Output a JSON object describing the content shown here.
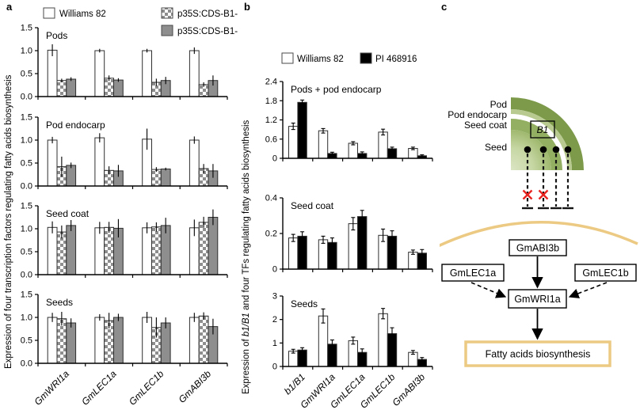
{
  "panels": {
    "a": {
      "label": "a",
      "ylabel": "Expression of four transcription factors regulating fatty acids biosynthesis",
      "legend": [
        {
          "name": "Williams 82",
          "swatch": "white",
          "color": "#ffffff"
        },
        {
          "name": "p35S:CDS-B1-1",
          "swatch": "checker",
          "color": "#8e8e8e"
        },
        {
          "name": "p35S:CDS-B1-2",
          "swatch": "gray",
          "color": "#8e8e8e"
        }
      ]
    },
    "b": {
      "label": "b",
      "ylabel_parts": {
        "pre": "Expression of ",
        "italic": "b1/B1",
        "post": " and four TFs regulating fatty acids biosynthesis"
      },
      "legend": [
        {
          "name": "Williams 82",
          "swatch": "white",
          "color": "#ffffff"
        },
        {
          "name": "PI 468916",
          "swatch": "black",
          "color": "#000000"
        }
      ]
    },
    "c": {
      "label": "c",
      "anatomy_labels": [
        "Pod",
        "Pod endocarp",
        "Seed coat",
        "Seed"
      ],
      "locus_label": "B1",
      "pathway": {
        "top": "GmABI3b",
        "left": "GmLEC1a",
        "right": "GmLEC1b",
        "center": "GmWRI1a",
        "output": "Fatty acids biosynthesis"
      },
      "colors": {
        "pod": "#7d9a4a",
        "pod_endocarp": "#b8ca90",
        "seed_coat": "#93af61",
        "seed_light": "#dbe5c4",
        "seed_mid": "#c7d7a4",
        "seed_dark": "#9fb86e",
        "gold": "#ecca83",
        "red_x": "#e8231f"
      }
    }
  },
  "chart_data": [
    {
      "panel": "a",
      "type": "bar",
      "title": "Pods",
      "categories": [
        "GmWRI1a",
        "GmLEC1a",
        "GmLEC1b",
        "GmABI3b"
      ],
      "ylim": [
        0,
        1.5
      ],
      "yticks": [
        "0.0",
        "0.5",
        "1.0",
        "1.5"
      ],
      "ylabel": "Expression of four transcription factors regulating fatty acids biosynthesis",
      "series": [
        {
          "name": "Williams 82",
          "values": [
            1.01,
            1.0,
            1.0,
            1.0
          ],
          "errors": [
            0.13,
            0.04,
            0.04,
            0.07
          ]
        },
        {
          "name": "p35S:CDS-B1-1",
          "values": [
            0.35,
            0.4,
            0.31,
            0.26
          ],
          "errors": [
            0.04,
            0.06,
            0.08,
            0.05
          ]
        },
        {
          "name": "p35S:CDS-B1-2",
          "values": [
            0.38,
            0.36,
            0.35,
            0.35
          ],
          "errors": [
            0.04,
            0.04,
            0.08,
            0.11
          ]
        }
      ]
    },
    {
      "panel": "a",
      "type": "bar",
      "title": "Pod endocarp",
      "categories": [
        "GmWRI1a",
        "GmLEC1a",
        "GmLEC1b",
        "GmABI3b"
      ],
      "ylim": [
        0,
        1.5
      ],
      "yticks": [
        "0.0",
        "0.5",
        "1.0",
        "1.5"
      ],
      "series": [
        {
          "name": "Williams 82",
          "values": [
            1.0,
            1.05,
            1.02,
            1.0
          ],
          "errors": [
            0.07,
            0.1,
            0.23,
            0.08
          ]
        },
        {
          "name": "p35S:CDS-B1-1",
          "values": [
            0.42,
            0.34,
            0.36,
            0.38
          ],
          "errors": [
            0.22,
            0.09,
            0.05,
            0.1
          ]
        },
        {
          "name": "p35S:CDS-B1-2",
          "values": [
            0.45,
            0.33,
            0.37,
            0.33
          ],
          "errors": [
            0.06,
            0.13,
            0.03,
            0.15
          ]
        }
      ]
    },
    {
      "panel": "a",
      "type": "bar",
      "title": "Seed coat",
      "categories": [
        "GmWRI1a",
        "GmLEC1a",
        "GmLEC1b",
        "GmABI3b"
      ],
      "ylim": [
        0,
        1.5
      ],
      "yticks": [
        "0.0",
        "0.5",
        "1.0",
        "1.5"
      ],
      "series": [
        {
          "name": "Williams 82",
          "values": [
            1.03,
            1.02,
            1.02,
            1.02
          ],
          "errors": [
            0.13,
            0.13,
            0.12,
            0.18
          ]
        },
        {
          "name": "p35S:CDS-B1-1",
          "values": [
            0.93,
            1.03,
            1.04,
            1.14
          ],
          "errors": [
            0.14,
            0.12,
            0.1,
            0.12
          ]
        },
        {
          "name": "p35S:CDS-B1-2",
          "values": [
            1.07,
            1.01,
            1.07,
            1.25
          ],
          "errors": [
            0.12,
            0.2,
            0.17,
            0.17
          ]
        }
      ]
    },
    {
      "panel": "a",
      "type": "bar",
      "title": "Seeds",
      "categories": [
        "GmWRI1a",
        "GmLEC1a",
        "GmLEC1b",
        "GmABI3b"
      ],
      "ylim": [
        0,
        1.5
      ],
      "yticks": [
        "0.0",
        "0.5",
        "1.0",
        "1.5"
      ],
      "series": [
        {
          "name": "Williams 82",
          "values": [
            1.0,
            1.0,
            1.0,
            1.0
          ],
          "errors": [
            0.1,
            0.07,
            0.12,
            0.1
          ]
        },
        {
          "name": "p35S:CDS-B1-1",
          "values": [
            0.97,
            0.93,
            0.78,
            1.03
          ],
          "errors": [
            0.15,
            0.17,
            0.22,
            0.08
          ]
        },
        {
          "name": "p35S:CDS-B1-2",
          "values": [
            0.88,
            1.0,
            0.88,
            0.8
          ],
          "errors": [
            0.1,
            0.08,
            0.12,
            0.17
          ]
        }
      ]
    },
    {
      "panel": "b",
      "type": "bar",
      "title": "Pods + pod endocarp",
      "categories": [
        "b1/B1",
        "GmWRI1a",
        "GmLEC1a",
        "GmLEC1b",
        "GmABI3b"
      ],
      "ylim": [
        0,
        2.4
      ],
      "yticks": [
        "0",
        "0.6",
        "1.2",
        "1.8",
        "2.4"
      ],
      "ylabel": "Expression of b1/B1 and four TFs regulating fatty acids biosynthesis",
      "series": [
        {
          "name": "Williams 82",
          "values": [
            1.0,
            0.86,
            0.47,
            0.82,
            0.31
          ],
          "errors": [
            0.1,
            0.07,
            0.05,
            0.09,
            0.04
          ]
        },
        {
          "name": "PI 468916",
          "values": [
            1.75,
            0.15,
            0.15,
            0.3,
            0.08
          ],
          "errors": [
            0.07,
            0.04,
            0.05,
            0.05,
            0.03
          ]
        }
      ]
    },
    {
      "panel": "b",
      "type": "bar",
      "title": "Seed coat",
      "categories": [
        "b1/B1",
        "GmWRI1a",
        "GmLEC1a",
        "GmLEC1b",
        "GmABI3b"
      ],
      "ylim": [
        0,
        0.4
      ],
      "yticks": [
        "0",
        "0.2",
        "0.4"
      ],
      "series": [
        {
          "name": "Williams 82",
          "values": [
            0.175,
            0.165,
            0.255,
            0.19,
            0.095
          ],
          "errors": [
            0.02,
            0.02,
            0.035,
            0.035,
            0.012
          ]
        },
        {
          "name": "PI 468916",
          "values": [
            0.185,
            0.15,
            0.295,
            0.185,
            0.09
          ],
          "errors": [
            0.025,
            0.025,
            0.035,
            0.03,
            0.02
          ]
        }
      ]
    },
    {
      "panel": "b",
      "type": "bar",
      "title": "Seeds",
      "categories": [
        "b1/B1",
        "GmWRI1a",
        "GmLEC1a",
        "GmLEC1b",
        "GmABI3b"
      ],
      "ylim": [
        0,
        3
      ],
      "yticks": [
        "0",
        "1",
        "2",
        "3"
      ],
      "series": [
        {
          "name": "Williams 82",
          "values": [
            0.65,
            2.15,
            1.1,
            2.25,
            0.6
          ],
          "errors": [
            0.08,
            0.3,
            0.15,
            0.22,
            0.08
          ]
        },
        {
          "name": "PI 468916",
          "values": [
            0.7,
            0.95,
            0.6,
            1.4,
            0.3
          ],
          "errors": [
            0.1,
            0.18,
            0.15,
            0.25,
            0.08
          ]
        }
      ]
    }
  ]
}
